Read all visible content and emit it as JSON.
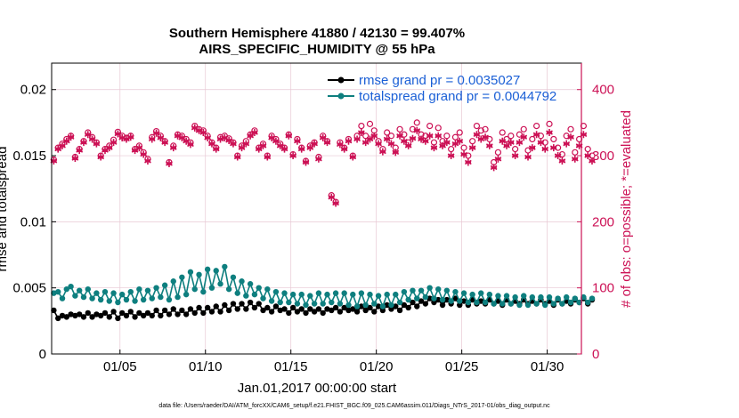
{
  "chart_data": {
    "type": "line",
    "title": "Southern Hemisphere 41880 / 42130 = 99.407%",
    "subtitle": "AIRS_SPECIFIC_HUMIDITY @ 55 hPa",
    "xlabel": "Jan.01,2017 00:00:00 start",
    "ylabel_left": "rmse and totalspread",
    "ylabel_right": "# of obs: o=possible; *=evaluated",
    "footer": "data file: /Users/raeder/DAI/ATM_forcXX/CAM6_setup/f.e21.FHIST_BGC.f09_025.CAM6assim.011/Diags_NTrS_2017-01/obs_diag_output.nc",
    "xlim": [
      1,
      32
    ],
    "ylim_left": [
      0,
      0.022
    ],
    "ylim_right": [
      0,
      440
    ],
    "x_tick_values": [
      5,
      10,
      15,
      20,
      25,
      30
    ],
    "x_tick_labels": [
      "01/05",
      "01/10",
      "01/15",
      "01/20",
      "01/25",
      "01/30"
    ],
    "y_left_tick_values": [
      0,
      0.005,
      0.01,
      0.015,
      0.02
    ],
    "y_left_tick_labels": [
      "0",
      "0.005",
      "0.01",
      "0.015",
      "0.02"
    ],
    "y_right_tick_values": [
      0,
      100,
      200,
      300,
      400
    ],
    "y_right_tick_labels": [
      "0",
      "100",
      "200",
      "300",
      "400"
    ],
    "grid": true,
    "legend_position": "top-right",
    "series": [
      {
        "name": "rmse grand pr = 0.0035027",
        "color": "#000000",
        "axis": "left",
        "marker": "filled-circle",
        "x_start": 1.125,
        "x_step": 0.25,
        "values": [
          0.0033,
          0.0027,
          0.0029,
          0.0028,
          0.003,
          0.0029,
          0.003,
          0.0028,
          0.0031,
          0.0028,
          0.003,
          0.0029,
          0.0031,
          0.0028,
          0.0032,
          0.0027,
          0.0031,
          0.0029,
          0.0032,
          0.0028,
          0.0031,
          0.0029,
          0.0031,
          0.0029,
          0.0033,
          0.0029,
          0.0033,
          0.003,
          0.0034,
          0.003,
          0.0033,
          0.003,
          0.0034,
          0.0031,
          0.0035,
          0.0031,
          0.0035,
          0.0032,
          0.0036,
          0.0032,
          0.0037,
          0.0033,
          0.0038,
          0.0034,
          0.0038,
          0.0034,
          0.0039,
          0.0035,
          0.0038,
          0.0033,
          0.0035,
          0.0032,
          0.0036,
          0.0033,
          0.0034,
          0.0031,
          0.0035,
          0.0032,
          0.0034,
          0.0031,
          0.0034,
          0.0032,
          0.0034,
          0.0031,
          0.0034,
          0.0033,
          0.0035,
          0.0032,
          0.0035,
          0.0033,
          0.0034,
          0.0032,
          0.0036,
          0.0033,
          0.0035,
          0.0032,
          0.0036,
          0.0033,
          0.0037,
          0.0034,
          0.0036,
          0.0033,
          0.0037,
          0.0035,
          0.0039,
          0.0036,
          0.004,
          0.0038,
          0.0042,
          0.0039,
          0.0041,
          0.0037,
          0.0041,
          0.0038,
          0.0042,
          0.0037,
          0.004,
          0.0037,
          0.0041,
          0.0038,
          0.004,
          0.0038,
          0.0041,
          0.0038,
          0.004,
          0.0037,
          0.0041,
          0.0038,
          0.004,
          0.0038,
          0.0041,
          0.0038,
          0.004,
          0.0038,
          0.0041,
          0.0038,
          0.004,
          0.0037,
          0.0041,
          0.0038,
          0.004,
          0.0038,
          0.0041,
          0.0039,
          0.0042,
          0.0038,
          0.0041
        ]
      },
      {
        "name": "totalspread grand pr = 0.0044792",
        "color": "#0e7f7f",
        "axis": "left",
        "marker": "filled-circle",
        "x_start": 1.125,
        "x_step": 0.25,
        "values": [
          0.0046,
          0.0047,
          0.0042,
          0.0049,
          0.0051,
          0.0044,
          0.0048,
          0.0043,
          0.0049,
          0.0042,
          0.0046,
          0.0041,
          0.0047,
          0.004,
          0.0046,
          0.0039,
          0.0045,
          0.0041,
          0.0047,
          0.004,
          0.0049,
          0.0041,
          0.0048,
          0.0042,
          0.005,
          0.0043,
          0.0052,
          0.0041,
          0.0055,
          0.0043,
          0.0058,
          0.0045,
          0.0062,
          0.0049,
          0.006,
          0.0047,
          0.0064,
          0.005,
          0.0063,
          0.0053,
          0.0066,
          0.0049,
          0.0058,
          0.0046,
          0.0055,
          0.0044,
          0.0053,
          0.0045,
          0.005,
          0.0042,
          0.0049,
          0.004,
          0.0047,
          0.0039,
          0.0046,
          0.0039,
          0.0045,
          0.0038,
          0.0045,
          0.0037,
          0.0044,
          0.0038,
          0.0046,
          0.0038,
          0.0045,
          0.0039,
          0.0046,
          0.0038,
          0.0046,
          0.0037,
          0.0045,
          0.0036,
          0.0046,
          0.0037,
          0.0045,
          0.0038,
          0.0044,
          0.0036,
          0.0045,
          0.0037,
          0.0045,
          0.0039,
          0.0047,
          0.0041,
          0.0048,
          0.0042,
          0.0048,
          0.0043,
          0.005,
          0.0042,
          0.0049,
          0.0041,
          0.0048,
          0.004,
          0.0047,
          0.004,
          0.0046,
          0.0039,
          0.0045,
          0.0039,
          0.0046,
          0.0039,
          0.0045,
          0.0038,
          0.0044,
          0.0038,
          0.0044,
          0.0038,
          0.0043,
          0.0037,
          0.0044,
          0.0037,
          0.0043,
          0.0038,
          0.0043,
          0.0037,
          0.0043,
          0.0038,
          0.0042,
          0.0038,
          0.0043,
          0.0039,
          0.0042,
          0.0039,
          0.0043,
          0.0039,
          0.0042
        ]
      },
      {
        "name": "possible",
        "color": "#cc1155",
        "axis": "right",
        "marker": "open-circle",
        "x_start": 1.125,
        "x_step": 0.25,
        "values": [
          294,
          312,
          318,
          325,
          330,
          298,
          310,
          322,
          335,
          328,
          320,
          300,
          310,
          315,
          324,
          336,
          330,
          327,
          330,
          310,
          315,
          305,
          295,
          328,
          337,
          330,
          322,
          290,
          315,
          332,
          330,
          325,
          320,
          345,
          340,
          338,
          330,
          320,
          312,
          328,
          330,
          326,
          320,
          300,
          315,
          322,
          332,
          338,
          312,
          318,
          300,
          330,
          325,
          318,
          312,
          332,
          302,
          325,
          312,
          292,
          315,
          320,
          298,
          330,
          322,
          240,
          230,
          320,
          312,
          325,
          300,
          330,
          345,
          330,
          348,
          338,
          322,
          310,
          335,
          330,
          312,
          340,
          332,
          320,
          340,
          350,
          332,
          330,
          345,
          320,
          342,
          322,
          330,
          310,
          328,
          335,
          312,
          300,
          322,
          345,
          338,
          340,
          325,
          290,
          305,
          335,
          325,
          330,
          310,
          332,
          340,
          308,
          325,
          345,
          330,
          320,
          348,
          325,
          312,
          302,
          330,
          340,
          305,
          325,
          345,
          310,
          300
        ]
      },
      {
        "name": "evaluated",
        "color": "#cc1155",
        "axis": "right",
        "marker": "star",
        "x_start": 1.125,
        "x_step": 0.25,
        "values": [
          292,
          310,
          315,
          322,
          328,
          296,
          308,
          320,
          332,
          325,
          318,
          298,
          308,
          312,
          320,
          333,
          327,
          325,
          328,
          308,
          312,
          302,
          292,
          325,
          334,
          327,
          320,
          288,
          312,
          330,
          327,
          322,
          317,
          342,
          338,
          335,
          327,
          318,
          310,
          325,
          327,
          323,
          318,
          298,
          312,
          318,
          330,
          335,
          310,
          315,
          298,
          327,
          322,
          315,
          310,
          330,
          300,
          322,
          310,
          290,
          312,
          318,
          295,
          327,
          320,
          237,
          228,
          317,
          310,
          322,
          298,
          325,
          335,
          320,
          325,
          330,
          318,
          306,
          325,
          318,
          305,
          330,
          322,
          315,
          326,
          338,
          325,
          322,
          330,
          312,
          330,
          315,
          320,
          300,
          318,
          322,
          302,
          290,
          312,
          332,
          325,
          328,
          315,
          282,
          295,
          322,
          315,
          320,
          300,
          320,
          328,
          298,
          312,
          332,
          320,
          310,
          335,
          312,
          300,
          292,
          318,
          328,
          295,
          315,
          332,
          300,
          292
        ]
      }
    ]
  }
}
